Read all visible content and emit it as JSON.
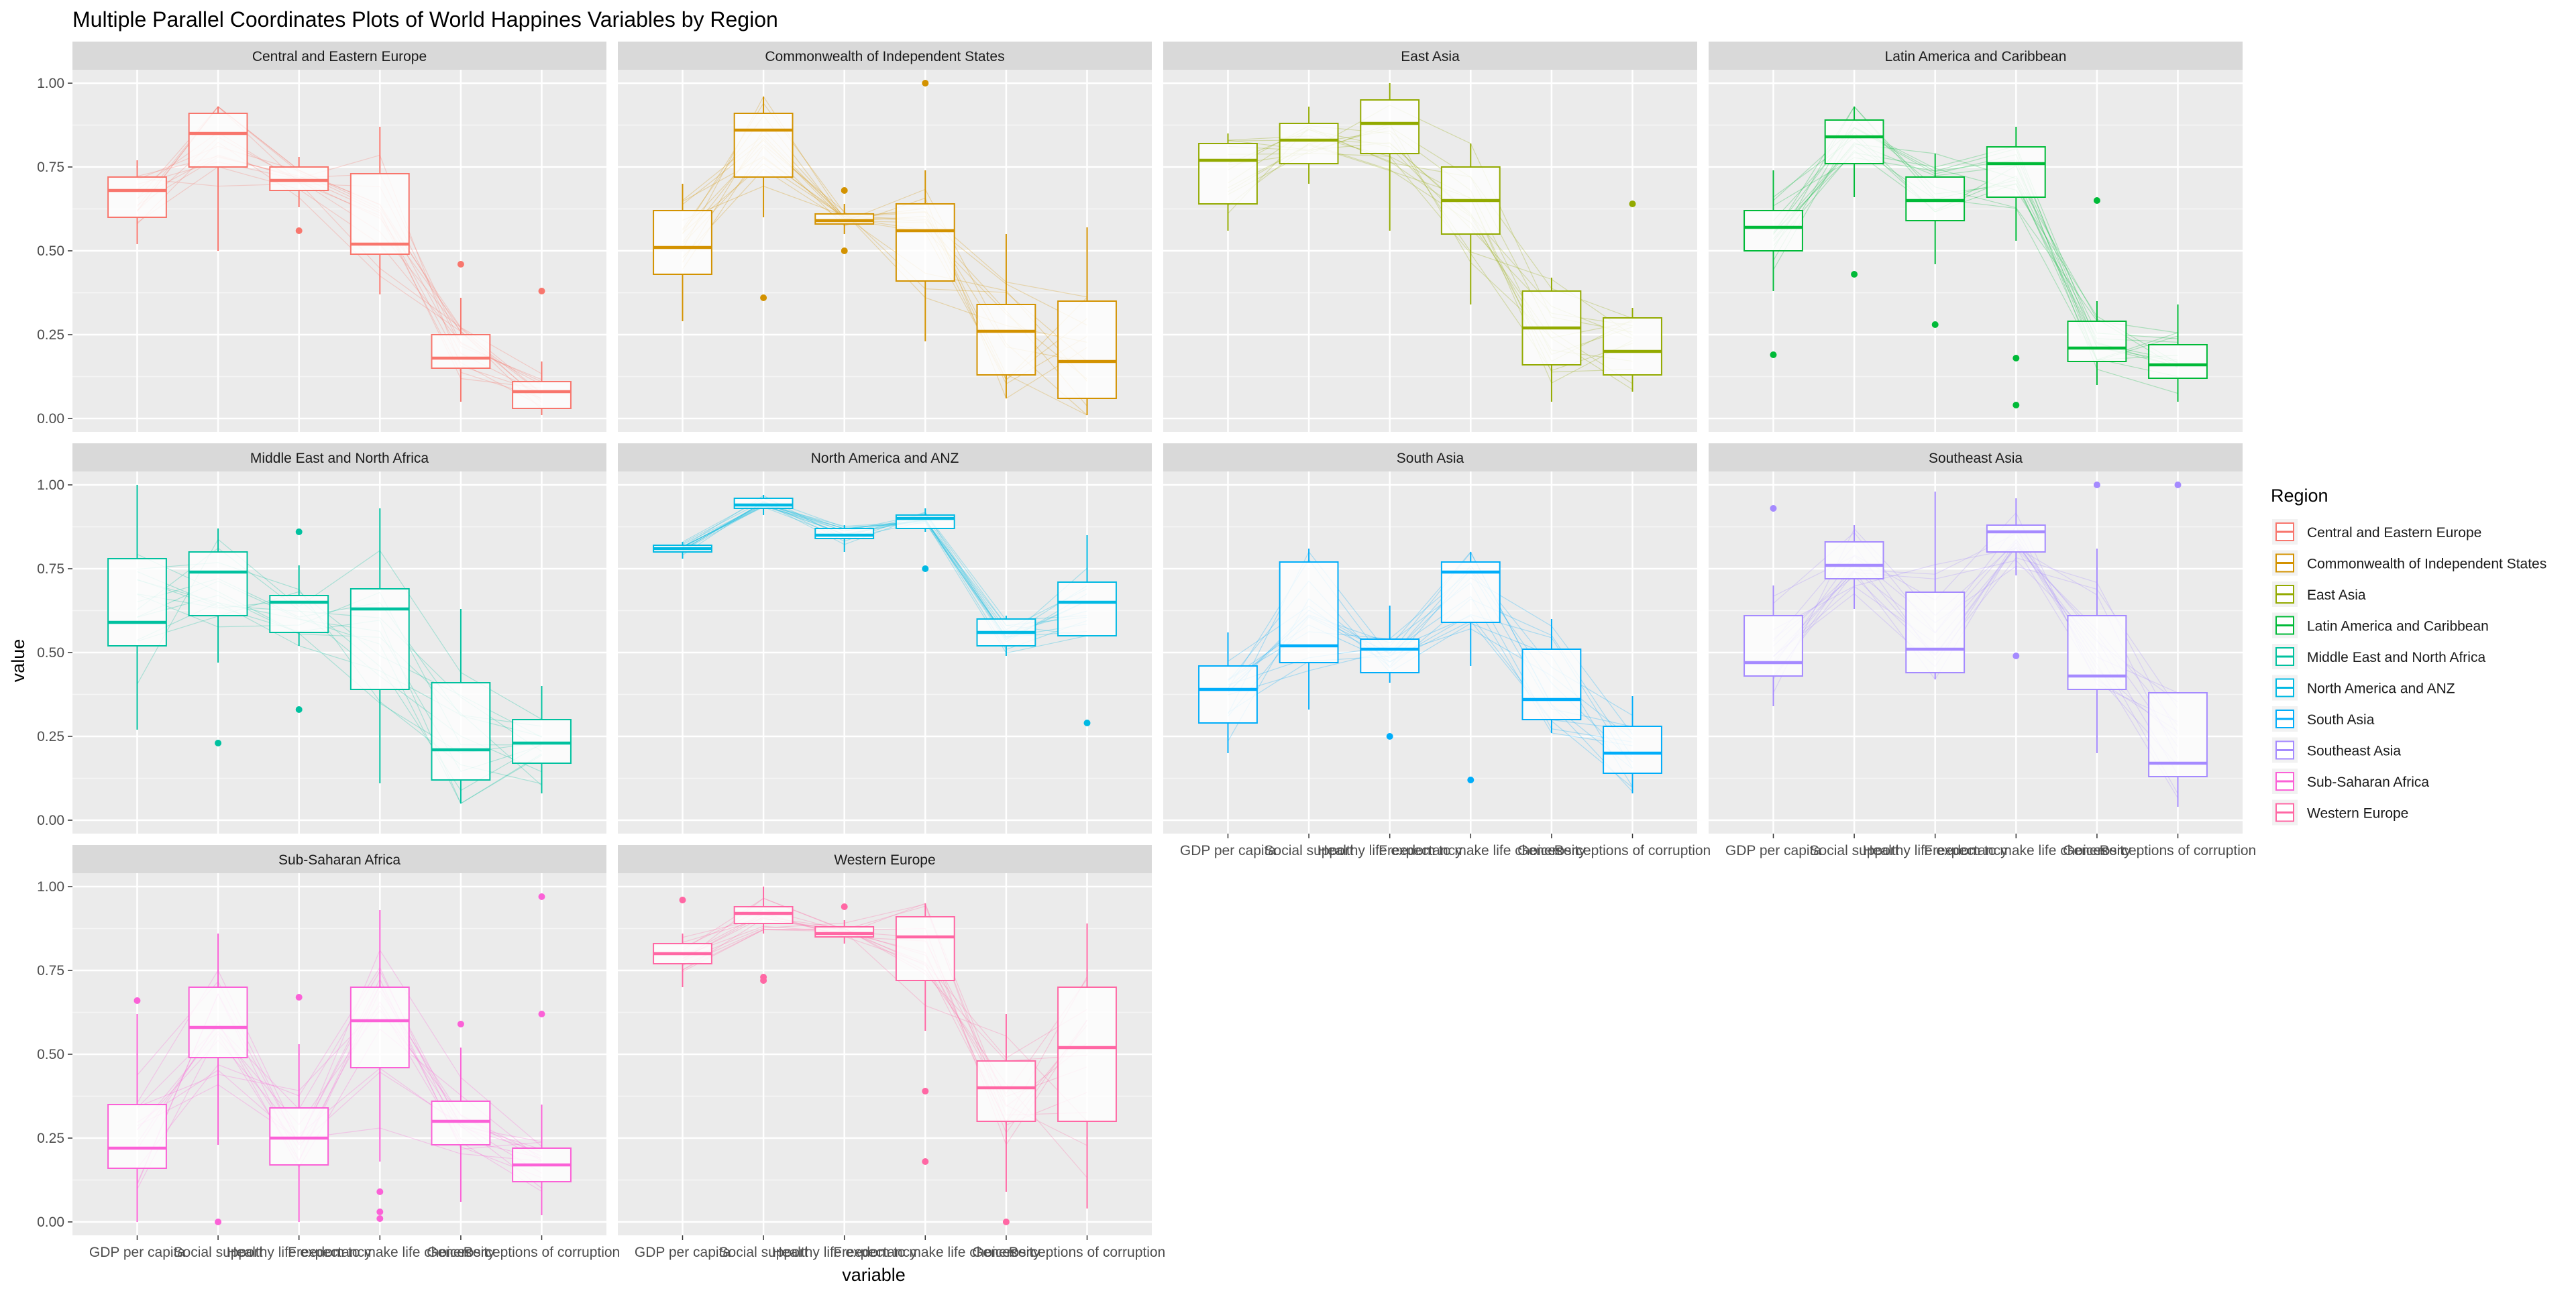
{
  "chart_data": {
    "type": "boxplot",
    "title": "Multiple Parallel Coordinates Plots of World Happines Variables by Region",
    "xlabel": "variable",
    "ylabel": "value",
    "ylim": [
      -0.04,
      1.04
    ],
    "yticks": [
      "0.00",
      "0.25",
      "0.50",
      "0.75",
      "1.00"
    ],
    "grid": true,
    "facet_layout": "4 columns x 3 rows",
    "legend": {
      "title": "Region",
      "position": "right"
    },
    "variables": [
      "GDP per capita",
      "Social support",
      "Healthy life expectancy",
      "Freedom to make life choices",
      "Generosity",
      "Perceptions of corruption"
    ],
    "panels": [
      {
        "region": "Central and Eastern Europe",
        "color": "#F8766D",
        "boxes": [
          {
            "min": 0.52,
            "q1": 0.6,
            "median": 0.68,
            "q3": 0.72,
            "max": 0.77,
            "outliers": []
          },
          {
            "min": 0.5,
            "q1": 0.75,
            "median": 0.85,
            "q3": 0.91,
            "max": 0.93,
            "outliers": []
          },
          {
            "min": 0.63,
            "q1": 0.68,
            "median": 0.71,
            "q3": 0.75,
            "max": 0.78,
            "outliers": [
              0.56
            ]
          },
          {
            "min": 0.37,
            "q1": 0.49,
            "median": 0.52,
            "q3": 0.73,
            "max": 0.87,
            "outliers": []
          },
          {
            "min": 0.05,
            "q1": 0.15,
            "median": 0.18,
            "q3": 0.25,
            "max": 0.36,
            "outliers": [
              0.46
            ]
          },
          {
            "min": 0.01,
            "q1": 0.03,
            "median": 0.08,
            "q3": 0.11,
            "max": 0.17,
            "outliers": [
              0.38
            ]
          }
        ]
      },
      {
        "region": "Commonwealth of Independent States",
        "color": "#D39200",
        "boxes": [
          {
            "min": 0.29,
            "q1": 0.43,
            "median": 0.51,
            "q3": 0.62,
            "max": 0.7,
            "outliers": []
          },
          {
            "min": 0.6,
            "q1": 0.72,
            "median": 0.86,
            "q3": 0.91,
            "max": 0.96,
            "outliers": [
              0.36
            ]
          },
          {
            "min": 0.55,
            "q1": 0.58,
            "median": 0.59,
            "q3": 0.61,
            "max": 0.64,
            "outliers": [
              0.5,
              0.68
            ]
          },
          {
            "min": 0.23,
            "q1": 0.41,
            "median": 0.56,
            "q3": 0.64,
            "max": 0.74,
            "outliers": [
              1.0
            ]
          },
          {
            "min": 0.06,
            "q1": 0.13,
            "median": 0.26,
            "q3": 0.34,
            "max": 0.55,
            "outliers": []
          },
          {
            "min": 0.01,
            "q1": 0.06,
            "median": 0.17,
            "q3": 0.35,
            "max": 0.57,
            "outliers": []
          }
        ]
      },
      {
        "region": "East Asia",
        "color": "#93AA00",
        "boxes": [
          {
            "min": 0.56,
            "q1": 0.64,
            "median": 0.77,
            "q3": 0.82,
            "max": 0.85,
            "outliers": []
          },
          {
            "min": 0.7,
            "q1": 0.76,
            "median": 0.83,
            "q3": 0.88,
            "max": 0.93,
            "outliers": []
          },
          {
            "min": 0.56,
            "q1": 0.79,
            "median": 0.88,
            "q3": 0.95,
            "max": 1.0,
            "outliers": []
          },
          {
            "min": 0.34,
            "q1": 0.55,
            "median": 0.65,
            "q3": 0.75,
            "max": 0.82,
            "outliers": []
          },
          {
            "min": 0.05,
            "q1": 0.16,
            "median": 0.27,
            "q3": 0.38,
            "max": 0.42,
            "outliers": []
          },
          {
            "min": 0.08,
            "q1": 0.13,
            "median": 0.2,
            "q3": 0.3,
            "max": 0.33,
            "outliers": [
              0.64
            ]
          }
        ]
      },
      {
        "region": "Latin America and Caribbean",
        "color": "#00BA38",
        "boxes": [
          {
            "min": 0.38,
            "q1": 0.5,
            "median": 0.57,
            "q3": 0.62,
            "max": 0.74,
            "outliers": [
              0.19
            ]
          },
          {
            "min": 0.66,
            "q1": 0.76,
            "median": 0.84,
            "q3": 0.89,
            "max": 0.93,
            "outliers": [
              0.43
            ]
          },
          {
            "min": 0.46,
            "q1": 0.59,
            "median": 0.65,
            "q3": 0.72,
            "max": 0.79,
            "outliers": [
              0.28
            ]
          },
          {
            "min": 0.53,
            "q1": 0.66,
            "median": 0.76,
            "q3": 0.81,
            "max": 0.87,
            "outliers": [
              0.18,
              0.04
            ]
          },
          {
            "min": 0.1,
            "q1": 0.17,
            "median": 0.21,
            "q3": 0.29,
            "max": 0.35,
            "outliers": [
              0.65
            ]
          },
          {
            "min": 0.05,
            "q1": 0.12,
            "median": 0.16,
            "q3": 0.22,
            "max": 0.34,
            "outliers": []
          }
        ]
      },
      {
        "region": "Middle East and North Africa",
        "color": "#00C19F",
        "boxes": [
          {
            "min": 0.27,
            "q1": 0.52,
            "median": 0.59,
            "q3": 0.78,
            "max": 1.0,
            "outliers": []
          },
          {
            "min": 0.47,
            "q1": 0.61,
            "median": 0.74,
            "q3": 0.8,
            "max": 0.87,
            "outliers": [
              0.23
            ]
          },
          {
            "min": 0.52,
            "q1": 0.56,
            "median": 0.65,
            "q3": 0.67,
            "max": 0.76,
            "outliers": [
              0.86,
              0.33
            ]
          },
          {
            "min": 0.11,
            "q1": 0.39,
            "median": 0.63,
            "q3": 0.69,
            "max": 0.93,
            "outliers": []
          },
          {
            "min": 0.05,
            "q1": 0.12,
            "median": 0.21,
            "q3": 0.41,
            "max": 0.63,
            "outliers": []
          },
          {
            "min": 0.08,
            "q1": 0.17,
            "median": 0.23,
            "q3": 0.3,
            "max": 0.4,
            "outliers": []
          }
        ]
      },
      {
        "region": "North America and ANZ",
        "color": "#00B9E3",
        "boxes": [
          {
            "min": 0.78,
            "q1": 0.8,
            "median": 0.81,
            "q3": 0.82,
            "max": 0.83,
            "outliers": []
          },
          {
            "min": 0.91,
            "q1": 0.93,
            "median": 0.94,
            "q3": 0.96,
            "max": 0.97,
            "outliers": []
          },
          {
            "min": 0.8,
            "q1": 0.84,
            "median": 0.85,
            "q3": 0.87,
            "max": 0.88,
            "outliers": []
          },
          {
            "min": 0.86,
            "q1": 0.87,
            "median": 0.9,
            "q3": 0.91,
            "max": 0.93,
            "outliers": [
              0.75
            ]
          },
          {
            "min": 0.49,
            "q1": 0.52,
            "median": 0.56,
            "q3": 0.6,
            "max": 0.61,
            "outliers": []
          },
          {
            "min": 0.55,
            "q1": 0.55,
            "median": 0.65,
            "q3": 0.71,
            "max": 0.85,
            "outliers": [
              0.29
            ]
          }
        ]
      },
      {
        "region": "South Asia",
        "color": "#00ADFA",
        "boxes": [
          {
            "min": 0.2,
            "q1": 0.29,
            "median": 0.39,
            "q3": 0.46,
            "max": 0.56,
            "outliers": []
          },
          {
            "min": 0.33,
            "q1": 0.47,
            "median": 0.52,
            "q3": 0.77,
            "max": 0.81,
            "outliers": []
          },
          {
            "min": 0.41,
            "q1": 0.44,
            "median": 0.51,
            "q3": 0.54,
            "max": 0.64,
            "outliers": [
              0.25
            ]
          },
          {
            "min": 0.46,
            "q1": 0.59,
            "median": 0.74,
            "q3": 0.77,
            "max": 0.8,
            "outliers": [
              0.12
            ]
          },
          {
            "min": 0.26,
            "q1": 0.3,
            "median": 0.36,
            "q3": 0.51,
            "max": 0.6,
            "outliers": []
          },
          {
            "min": 0.08,
            "q1": 0.14,
            "median": 0.2,
            "q3": 0.28,
            "max": 0.37,
            "outliers": []
          }
        ]
      },
      {
        "region": "Southeast Asia",
        "color": "#A58AFF",
        "boxes": [
          {
            "min": 0.34,
            "q1": 0.43,
            "median": 0.47,
            "q3": 0.61,
            "max": 0.7,
            "outliers": [
              0.93
            ]
          },
          {
            "min": 0.63,
            "q1": 0.72,
            "median": 0.76,
            "q3": 0.83,
            "max": 0.88,
            "outliers": []
          },
          {
            "min": 0.42,
            "q1": 0.44,
            "median": 0.51,
            "q3": 0.68,
            "max": 0.98,
            "outliers": []
          },
          {
            "min": 0.73,
            "q1": 0.8,
            "median": 0.86,
            "q3": 0.88,
            "max": 0.96,
            "outliers": [
              0.49
            ]
          },
          {
            "min": 0.2,
            "q1": 0.39,
            "median": 0.43,
            "q3": 0.61,
            "max": 0.81,
            "outliers": [
              1.0
            ]
          },
          {
            "min": 0.04,
            "q1": 0.13,
            "median": 0.17,
            "q3": 0.38,
            "max": 0.38,
            "outliers": [
              1.0
            ]
          }
        ]
      },
      {
        "region": "Sub-Saharan Africa",
        "color": "#FB61D7",
        "boxes": [
          {
            "min": 0.0,
            "q1": 0.16,
            "median": 0.22,
            "q3": 0.35,
            "max": 0.62,
            "outliers": [
              0.66
            ]
          },
          {
            "min": 0.23,
            "q1": 0.49,
            "median": 0.58,
            "q3": 0.7,
            "max": 0.86,
            "outliers": [
              0.0
            ]
          },
          {
            "min": 0.0,
            "q1": 0.17,
            "median": 0.25,
            "q3": 0.34,
            "max": 0.53,
            "outliers": [
              0.67
            ]
          },
          {
            "min": 0.18,
            "q1": 0.46,
            "median": 0.6,
            "q3": 0.7,
            "max": 0.93,
            "outliers": [
              0.09,
              0.03,
              0.01
            ]
          },
          {
            "min": 0.06,
            "q1": 0.23,
            "median": 0.3,
            "q3": 0.36,
            "max": 0.52,
            "outliers": [
              0.59
            ]
          },
          {
            "min": 0.02,
            "q1": 0.12,
            "median": 0.17,
            "q3": 0.22,
            "max": 0.35,
            "outliers": [
              0.62,
              0.97
            ]
          }
        ]
      },
      {
        "region": "Western Europe",
        "color": "#FF67A4",
        "boxes": [
          {
            "min": 0.7,
            "q1": 0.77,
            "median": 0.8,
            "q3": 0.83,
            "max": 0.86,
            "outliers": [
              0.96
            ]
          },
          {
            "min": 0.86,
            "q1": 0.89,
            "median": 0.92,
            "q3": 0.94,
            "max": 1.0,
            "outliers": [
              0.72,
              0.73
            ]
          },
          {
            "min": 0.83,
            "q1": 0.85,
            "median": 0.86,
            "q3": 0.88,
            "max": 0.9,
            "outliers": [
              0.94
            ]
          },
          {
            "min": 0.57,
            "q1": 0.72,
            "median": 0.85,
            "q3": 0.91,
            "max": 0.95,
            "outliers": [
              0.39,
              0.18
            ]
          },
          {
            "min": 0.09,
            "q1": 0.3,
            "median": 0.4,
            "q3": 0.48,
            "max": 0.62,
            "outliers": [
              0.0
            ]
          },
          {
            "min": 0.04,
            "q1": 0.3,
            "median": 0.52,
            "q3": 0.7,
            "max": 0.89,
            "outliers": []
          }
        ]
      }
    ]
  }
}
